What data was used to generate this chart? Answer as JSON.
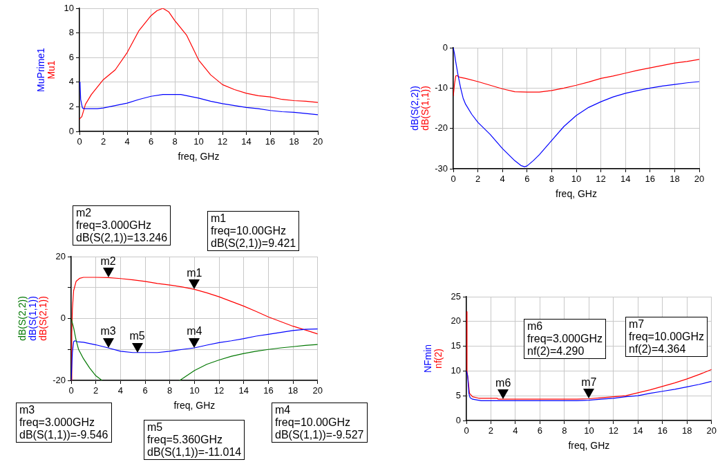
{
  "chart_data": [
    {
      "type": "line",
      "xlabel": "freq, GHz",
      "xlim": [
        0,
        20
      ],
      "xticks": [
        0,
        2,
        4,
        6,
        8,
        10,
        12,
        14,
        16,
        18,
        20
      ],
      "ylim": [
        0,
        10
      ],
      "yticks": [
        0,
        2,
        4,
        6,
        8,
        10
      ],
      "grid": true,
      "series": [
        {
          "name": "MuPrime1",
          "color": "#0000ff",
          "x": [
            0,
            0.05,
            0.1,
            0.25,
            0.4,
            1,
            1.5,
            2,
            3,
            4,
            5,
            6,
            7,
            8,
            8.5,
            9,
            10,
            11,
            12,
            13,
            14,
            15,
            16,
            17,
            18,
            19,
            20
          ],
          "values": [
            4.0,
            3.9,
            2.6,
            1.9,
            1.85,
            1.85,
            1.85,
            1.9,
            2.1,
            2.3,
            2.6,
            2.85,
            3.0,
            3.0,
            3.0,
            2.9,
            2.7,
            2.45,
            2.25,
            2.1,
            1.95,
            1.85,
            1.7,
            1.6,
            1.55,
            1.45,
            1.35
          ]
        },
        {
          "name": "Mu1",
          "color": "#ff0000",
          "x": [
            0,
            0.2,
            0.5,
            1,
            1.5,
            2,
            3,
            4,
            5,
            6,
            6.5,
            7,
            7.5,
            8,
            9,
            10,
            11,
            12,
            13,
            14,
            15,
            16,
            17,
            18,
            19,
            20
          ],
          "values": [
            1.0,
            1.2,
            2.2,
            3.0,
            3.6,
            4.2,
            5.0,
            6.4,
            8.2,
            9.4,
            9.8,
            10.0,
            9.7,
            9.0,
            7.8,
            5.8,
            4.6,
            3.8,
            3.4,
            3.1,
            2.9,
            2.8,
            2.6,
            2.5,
            2.45,
            2.35
          ]
        }
      ]
    },
    {
      "type": "line",
      "xlabel": "freq, GHz",
      "xlim": [
        0,
        20
      ],
      "xticks": [
        0,
        2,
        4,
        6,
        8,
        10,
        12,
        14,
        16,
        18,
        20
      ],
      "ylim": [
        -30,
        0
      ],
      "yticks": [
        -30,
        -20,
        -10,
        0
      ],
      "grid": true,
      "series": [
        {
          "name": "dB(S(2,2))",
          "color": "#0000ff",
          "x": [
            0,
            0.1,
            0.2,
            0.4,
            0.6,
            0.8,
            1,
            1.5,
            2,
            3,
            4,
            5,
            5.5,
            5.8,
            6,
            6.5,
            7,
            8,
            9,
            10,
            11,
            12,
            13,
            14,
            15,
            16,
            17,
            18,
            19,
            20
          ],
          "values": [
            0,
            -1.5,
            -3.5,
            -7,
            -10,
            -12.5,
            -14,
            -16.5,
            -18.5,
            -21.5,
            -25,
            -28,
            -29.2,
            -29.5,
            -29.3,
            -28,
            -26.5,
            -23,
            -19.5,
            -16.8,
            -14.8,
            -13.4,
            -12.2,
            -11.3,
            -10.6,
            -10,
            -9.5,
            -9.1,
            -8.7,
            -8.4
          ]
        },
        {
          "name": "dB(S(1,1))",
          "color": "#ff0000",
          "x": [
            0,
            0.1,
            0.2,
            0.3,
            0.5,
            1,
            2,
            3,
            4,
            5,
            6,
            7,
            8,
            9,
            10,
            11,
            12,
            13,
            14,
            15,
            16,
            17,
            18,
            19,
            20
          ],
          "values": [
            -12,
            -9,
            -7,
            -6.9,
            -7.3,
            -7.6,
            -8.4,
            -9.3,
            -10.2,
            -10.9,
            -11.0,
            -11.0,
            -10.6,
            -10.0,
            -9.3,
            -8.5,
            -7.6,
            -7.0,
            -6.3,
            -5.6,
            -5.0,
            -4.4,
            -3.8,
            -3.4,
            -2.9
          ]
        }
      ]
    },
    {
      "type": "line",
      "xlabel": "freq, GHz",
      "xlim": [
        0,
        20
      ],
      "xticks": [
        0,
        2,
        4,
        6,
        8,
        10,
        12,
        14,
        16,
        18,
        20
      ],
      "ylim": [
        -20,
        20
      ],
      "yticks": [
        -20,
        {
          "value": -10,
          "label": null
        },
        0,
        {
          "value": 10,
          "label": null
        },
        20
      ],
      "grid": true,
      "series": [
        {
          "name": "dB(S(2,2))",
          "color": "#007700",
          "x": [
            0,
            0.2,
            0.4,
            0.6,
            1,
            1.5,
            2,
            2.5,
            5.6,
            8.8,
            9,
            10,
            11,
            12,
            13,
            14,
            15,
            16,
            17,
            18,
            19,
            20
          ],
          "values": [
            0,
            -3,
            -7,
            -10,
            -13,
            -16,
            -18.5,
            -20,
            null,
            -20,
            -19.5,
            -16.8,
            -14.8,
            -13.4,
            -12.2,
            -11.3,
            -10.6,
            -10,
            -9.5,
            -9.1,
            -8.7,
            -8.4
          ]
        },
        {
          "name": "dB(S(1,1))",
          "color": "#0000ff",
          "x": [
            0,
            0.1,
            0.2,
            0.3,
            0.5,
            1,
            2,
            3,
            4,
            5,
            5.36,
            6,
            7,
            8,
            9,
            10,
            11,
            12,
            13,
            14,
            15,
            16,
            17,
            18,
            19,
            20
          ],
          "values": [
            -20,
            -11,
            -7.5,
            -7.2,
            -7.5,
            -7.7,
            -8.5,
            -9.5,
            -10.6,
            -11.0,
            -11.0,
            -11.0,
            -11.0,
            -10.6,
            -10.0,
            -9.5,
            -8.6,
            -7.8,
            -7.2,
            -6.5,
            -5.7,
            -5.1,
            -4.5,
            -3.9,
            -3.5,
            -3.4
          ]
        },
        {
          "name": "dB(S(2,1))",
          "color": "#ff0000",
          "x": [
            0,
            0.05,
            0.1,
            0.2,
            0.4,
            0.7,
            1,
            2,
            3,
            4,
            5,
            6,
            7,
            8,
            9,
            10,
            11,
            12,
            13,
            14,
            15,
            16,
            17,
            18,
            19,
            20
          ],
          "values": [
            -20,
            -5,
            3,
            9,
            12,
            13,
            13.3,
            13.3,
            13.2,
            12.9,
            12.5,
            12,
            11.3,
            10.8,
            10.2,
            9.4,
            8.3,
            7,
            5.5,
            4,
            2.3,
            0.5,
            -1,
            -2.5,
            -3.7,
            -5
          ]
        }
      ],
      "annotations": [
        "m2\nfreq=3.000GHz\ndB(S(2,1))=13.246",
        "m1\nfreq=10.00GHz\ndB(S(2,1))=9.421",
        "m3\nfreq=3.000GHz\ndB(S(1,1))=-9.546",
        "m5\nfreq=5.360GHz\ndB(S(1,1))=-11.014",
        "m4\nfreq=10.00GHz\ndB(S(1,1))=-9.527",
        {
          "text": "m2",
          "x": 3,
          "y": 13.2
        },
        {
          "text": "m1",
          "x": 10,
          "y": 9.4
        },
        {
          "text": "m3",
          "x": 3,
          "y": -9.5
        },
        {
          "text": "m5",
          "x": 5.36,
          "y": -11.0
        },
        {
          "text": "m4",
          "x": 10,
          "y": -9.5
        }
      ]
    },
    {
      "type": "line",
      "xlabel": "freq, GHz",
      "xlim": [
        0,
        20
      ],
      "xticks": [
        0,
        2,
        4,
        6,
        8,
        10,
        12,
        14,
        16,
        18,
        20
      ],
      "ylim": [
        0,
        25
      ],
      "yticks": [
        0,
        5,
        10,
        15,
        20,
        25
      ],
      "grid": true,
      "series": [
        {
          "name": "NFmin",
          "color": "#0000ff",
          "x": [
            0,
            0.1,
            0.2,
            0.3,
            0.5,
            1.2,
            3,
            6,
            9,
            10,
            11,
            12,
            13,
            14,
            15,
            16,
            17,
            18,
            19,
            20
          ],
          "values": [
            10,
            9,
            5.5,
            4.6,
            4.3,
            4.0,
            4.0,
            4.0,
            4.0,
            4.1,
            4.3,
            4.5,
            4.8,
            5.0,
            5.5,
            5.9,
            6.3,
            6.8,
            7.3,
            7.9
          ]
        },
        {
          "name": "nf(2)",
          "color": "#ff0000",
          "x": [
            0,
            0.05,
            0.15,
            0.25,
            0.5,
            1,
            2,
            2.5,
            2.6,
            3,
            6,
            9,
            10,
            11,
            12,
            13,
            14,
            15,
            16,
            17,
            18,
            19,
            20
          ],
          "values": [
            22,
            10,
            8,
            5.5,
            4.8,
            4.5,
            4.5,
            4.5,
            4.3,
            4.3,
            4.3,
            4.3,
            4.4,
            4.6,
            4.8,
            5.0,
            5.6,
            6.2,
            6.9,
            7.6,
            8.4,
            9.3,
            10.3
          ]
        }
      ],
      "annotations": [
        "m6\nfreq=3.000GHz\nnf(2)=4.290",
        "m7\nfreq=10.00GHz\nnf(2)=4.364",
        {
          "text": "m6",
          "x": 3,
          "y": 4.3
        },
        {
          "text": "m7",
          "x": 10,
          "y": 4.4
        }
      ]
    }
  ]
}
